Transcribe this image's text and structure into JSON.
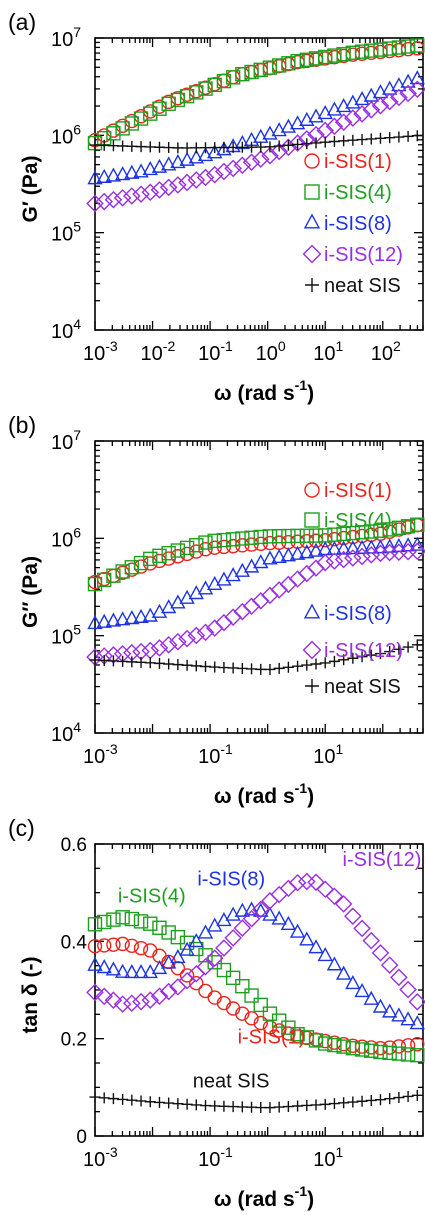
{
  "colors": {
    "i-SIS(1)": "#e8241c",
    "i-SIS(4)": "#1ea01e",
    "i-SIS(8)": "#1c34e0",
    "i-SIS(12)": "#9a2ee0",
    "neat SIS": "#111111"
  },
  "markers": {
    "i-SIS(1)": "circle",
    "i-SIS(4)": "square",
    "i-SIS(8)": "triangle",
    "i-SIS(12)": "diamond",
    "neat SIS": "plus"
  },
  "chart_data": [
    {
      "type": "scatter",
      "panel_label": "(a)",
      "xlabel_main": "ω (rad s",
      "xlabel_sup": "-1",
      "xlabel_close": ")",
      "ylabel": "G′ (Pa)",
      "xscale": "log",
      "yscale": "log",
      "xlim": [
        0.001,
        500
      ],
      "ylim": [
        10000,
        10000000
      ],
      "xticks": [
        0.001,
        0.01,
        0.1,
        1,
        10,
        100
      ],
      "xtick_labels": [
        {
          "b": "10",
          "e": "-3"
        },
        {
          "b": "10",
          "e": "-2"
        },
        {
          "b": "10",
          "e": "-1"
        },
        {
          "b": "10",
          "e": "0"
        },
        {
          "b": "10",
          "e": "1"
        },
        {
          "b": "10",
          "e": "2"
        }
      ],
      "yticks": [
        10000,
        100000,
        1000000,
        10000000
      ],
      "ytick_labels": [
        {
          "b": "10",
          "e": "4"
        },
        {
          "b": "10",
          "e": "5"
        },
        {
          "b": "10",
          "e": "6"
        },
        {
          "b": "10",
          "e": "7"
        }
      ],
      "legend_position": "right",
      "legend": [
        {
          "series": "i-SIS(1)",
          "text": "i-SIS(1)"
        },
        {
          "series": "i-SIS(4)",
          "text": "i-SIS(4)"
        },
        {
          "series": "i-SIS(8)",
          "text": "i-SIS(8)"
        },
        {
          "series": "i-SIS(12)",
          "text": "i-SIS(12)"
        },
        {
          "series": "neat SIS",
          "text": "neat SIS"
        }
      ],
      "annotations": [],
      "series": [
        {
          "name": "i-SIS(1)",
          "points": [
            [
              -3,
              5.95
            ],
            [
              -1.7,
              6.35
            ],
            [
              -0.5,
              6.62
            ],
            [
              0.5,
              6.75
            ],
            [
              1.5,
              6.83
            ],
            [
              2.7,
              6.9
            ]
          ]
        },
        {
          "name": "i-SIS(4)",
          "points": [
            [
              -3,
              5.92
            ],
            [
              -1.7,
              6.33
            ],
            [
              -0.5,
              6.62
            ],
            [
              0.5,
              6.76
            ],
            [
              1.5,
              6.85
            ],
            [
              2.7,
              6.93
            ]
          ]
        },
        {
          "name": "i-SIS(8)",
          "points": [
            [
              -3,
              5.55
            ],
            [
              -2.2,
              5.62
            ],
            [
              -1,
              5.8
            ],
            [
              0,
              6.0
            ],
            [
              1,
              6.22
            ],
            [
              2.7,
              6.6
            ]
          ]
        },
        {
          "name": "i-SIS(12)",
          "points": [
            [
              -3,
              5.3
            ],
            [
              -2,
              5.42
            ],
            [
              -1,
              5.58
            ],
            [
              0,
              5.78
            ],
            [
              1,
              6.05
            ],
            [
              2.7,
              6.5
            ]
          ]
        },
        {
          "name": "neat SIS",
          "points": [
            [
              -3,
              5.9
            ],
            [
              -1.5,
              5.87
            ],
            [
              0,
              5.88
            ],
            [
              1,
              5.93
            ],
            [
              2.7,
              6.0
            ]
          ]
        }
      ]
    },
    {
      "type": "scatter",
      "panel_label": "(b)",
      "xlabel_main": "ω (rad s",
      "xlabel_sup": "-1",
      "xlabel_close": ")",
      "ylabel": "G″ (Pa)",
      "xscale": "log",
      "yscale": "log",
      "xlim": [
        0.001,
        500
      ],
      "ylim": [
        10000,
        10000000
      ],
      "xticks": [
        0.001,
        0.1,
        10
      ],
      "xtick_labels": [
        {
          "b": "10",
          "e": "-3"
        },
        {
          "b": "10",
          "e": "-1"
        },
        {
          "b": "10",
          "e": "1"
        }
      ],
      "yticks": [
        10000,
        100000,
        1000000,
        10000000
      ],
      "ytick_labels": [
        {
          "b": "10",
          "e": "4"
        },
        {
          "b": "10",
          "e": "5"
        },
        {
          "b": "10",
          "e": "6"
        },
        {
          "b": "10",
          "e": "7"
        }
      ],
      "legend_position": "right",
      "legend": [
        {
          "series": "i-SIS(1)",
          "text": "i-SIS(1)"
        },
        {
          "series": "i-SIS(4)",
          "text": "i-SIS(4)"
        },
        {
          "series": "i-SIS(8)",
          "text": "i-SIS(8)"
        },
        {
          "series": "i-SIS(12)",
          "text": "i-SIS(12)"
        },
        {
          "series": "neat SIS",
          "text": "neat SIS"
        }
      ],
      "annotations": [],
      "series": [
        {
          "name": "i-SIS(1)",
          "points": [
            [
              -3,
              5.55
            ],
            [
              -2,
              5.75
            ],
            [
              -1,
              5.9
            ],
            [
              0,
              5.95
            ],
            [
              1,
              5.98
            ],
            [
              2,
              6.05
            ],
            [
              2.7,
              6.15
            ]
          ]
        },
        {
          "name": "i-SIS(4)",
          "points": [
            [
              -3,
              5.53
            ],
            [
              -2,
              5.8
            ],
            [
              -1,
              5.97
            ],
            [
              0,
              6.02
            ],
            [
              1,
              6.03
            ],
            [
              2,
              6.08
            ],
            [
              2.7,
              6.15
            ]
          ]
        },
        {
          "name": "i-SIS(8)",
          "points": [
            [
              -3,
              5.12
            ],
            [
              -2,
              5.2
            ],
            [
              -1,
              5.5
            ],
            [
              0,
              5.78
            ],
            [
              1,
              5.88
            ],
            [
              2,
              5.9
            ],
            [
              2.7,
              5.93
            ]
          ]
        },
        {
          "name": "i-SIS(12)",
          "points": [
            [
              -3,
              4.78
            ],
            [
              -2,
              4.85
            ],
            [
              -1,
              5.05
            ],
            [
              0,
              5.4
            ],
            [
              1,
              5.75
            ],
            [
              2,
              5.85
            ],
            [
              2.7,
              5.87
            ]
          ]
        },
        {
          "name": "neat SIS",
          "points": [
            [
              -3,
              4.75
            ],
            [
              -2,
              4.72
            ],
            [
              -1,
              4.68
            ],
            [
              0,
              4.65
            ],
            [
              1,
              4.72
            ],
            [
              2,
              4.82
            ],
            [
              2.7,
              4.92
            ]
          ]
        }
      ]
    },
    {
      "type": "scatter",
      "panel_label": "(c)",
      "xlabel_main": "ω (rad s",
      "xlabel_sup": "-1",
      "xlabel_close": ")",
      "ylabel": "tan δ (-)",
      "xscale": "log",
      "yscale": "linear",
      "xlim": [
        0.001,
        500
      ],
      "ylim": [
        0,
        0.6
      ],
      "xticks": [
        0.001,
        0.1,
        10
      ],
      "xtick_labels": [
        {
          "b": "10",
          "e": "-3"
        },
        {
          "b": "10",
          "e": "-1"
        },
        {
          "b": "10",
          "e": "1"
        }
      ],
      "yticks": [
        0,
        0.2,
        0.4,
        0.6
      ],
      "ytick_labels": [
        {
          "b": "0",
          "e": ""
        },
        {
          "b": "0.2",
          "e": ""
        },
        {
          "b": "0.4",
          "e": ""
        },
        {
          "b": "0.6",
          "e": ""
        }
      ],
      "legend_position": "none",
      "legend": [],
      "annotations": [
        {
          "series": "i-SIS(4)",
          "text": "i-SIS(4)",
          "x": 0.0025,
          "y": 0.48
        },
        {
          "series": "i-SIS(8)",
          "text": "i-SIS(8)",
          "x": 0.06,
          "y": 0.515
        },
        {
          "series": "i-SIS(12)",
          "text": "i-SIS(12)",
          "x": 20,
          "y": 0.555
        },
        {
          "series": "i-SIS(1)",
          "text": "i-SIS(1)",
          "x": 0.3,
          "y": 0.19
        },
        {
          "series": "neat SIS",
          "text": "neat SIS",
          "x": 0.05,
          "y": 0.1
        }
      ],
      "series": [
        {
          "name": "i-SIS(1)",
          "points": [
            [
              -3,
              0.39
            ],
            [
              -2.5,
              0.395
            ],
            [
              -2,
              0.38
            ],
            [
              -1.5,
              0.34
            ],
            [
              -1,
              0.29
            ],
            [
              -0.5,
              0.255
            ],
            [
              0,
              0.225
            ],
            [
              0.5,
              0.205
            ],
            [
              1,
              0.195
            ],
            [
              1.5,
              0.185
            ],
            [
              2,
              0.18
            ],
            [
              2.7,
              0.19
            ]
          ]
        },
        {
          "name": "i-SIS(4)",
          "points": [
            [
              -3,
              0.435
            ],
            [
              -2.5,
              0.45
            ],
            [
              -2,
              0.435
            ],
            [
              -1.5,
              0.405
            ],
            [
              -1,
              0.365
            ],
            [
              -0.5,
              0.315
            ],
            [
              0,
              0.255
            ],
            [
              0.5,
              0.21
            ],
            [
              1,
              0.19
            ],
            [
              1.5,
              0.18
            ],
            [
              2,
              0.172
            ],
            [
              2.7,
              0.165
            ]
          ]
        },
        {
          "name": "i-SIS(8)",
          "points": [
            [
              -3,
              0.35
            ],
            [
              -2.5,
              0.335
            ],
            [
              -2,
              0.335
            ],
            [
              -1.5,
              0.37
            ],
            [
              -1,
              0.425
            ],
            [
              -0.5,
              0.46
            ],
            [
              -0.2,
              0.465
            ],
            [
              0.3,
              0.44
            ],
            [
              1,
              0.37
            ],
            [
              1.5,
              0.31
            ],
            [
              2,
              0.26
            ],
            [
              2.7,
              0.225
            ]
          ]
        },
        {
          "name": "i-SIS(12)",
          "points": [
            [
              -3,
              0.295
            ],
            [
              -2.5,
              0.27
            ],
            [
              -2,
              0.28
            ],
            [
              -1.5,
              0.31
            ],
            [
              -1,
              0.355
            ],
            [
              -0.5,
              0.42
            ],
            [
              0,
              0.48
            ],
            [
              0.5,
              0.52
            ],
            [
              0.8,
              0.525
            ],
            [
              1.3,
              0.48
            ],
            [
              2,
              0.37
            ],
            [
              2.7,
              0.26
            ]
          ]
        },
        {
          "name": "neat SIS",
          "points": [
            [
              -3,
              0.08
            ],
            [
              -2,
              0.07
            ],
            [
              -1,
              0.062
            ],
            [
              0,
              0.058
            ],
            [
              1,
              0.065
            ],
            [
              2,
              0.075
            ],
            [
              2.7,
              0.085
            ]
          ]
        }
      ]
    }
  ]
}
